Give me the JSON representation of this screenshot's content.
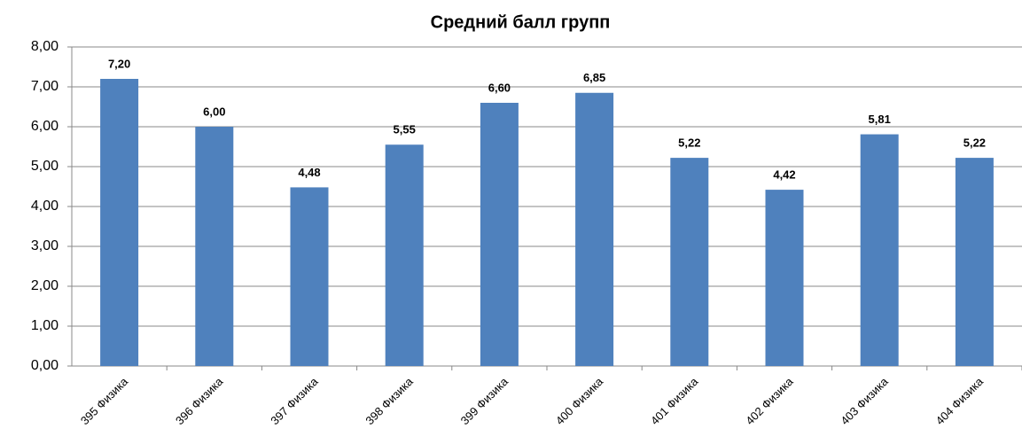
{
  "chart_data": {
    "type": "bar",
    "title": "Средний балл групп",
    "categories": [
      "395 Физика",
      "396 Физика",
      "397 Физика",
      "398 Физика",
      "399 Физика",
      "400 Физика",
      "401 Физика",
      "402 Физика",
      "403 Физика",
      "404 Физика"
    ],
    "values": [
      7.2,
      6.0,
      4.48,
      5.55,
      6.6,
      6.85,
      5.22,
      4.42,
      5.81,
      5.22
    ],
    "value_labels": [
      "7,20",
      "6,00",
      "4,48",
      "5,55",
      "6,60",
      "6,85",
      "5,22",
      "4,42",
      "5,81",
      "5,22"
    ],
    "color": "#4f81bd",
    "ylim": [
      0,
      8
    ],
    "yticks": [
      {
        "value": 0,
        "label": "0,00"
      },
      {
        "value": 1,
        "label": "1,00"
      },
      {
        "value": 2,
        "label": "2,00"
      },
      {
        "value": 3,
        "label": "3,00"
      },
      {
        "value": 4,
        "label": "4,00"
      },
      {
        "value": 5,
        "label": "5,00"
      },
      {
        "value": 6,
        "label": "6,00"
      },
      {
        "value": 7,
        "label": "7,00"
      },
      {
        "value": 8,
        "label": "8,00"
      }
    ],
    "grid": true
  }
}
